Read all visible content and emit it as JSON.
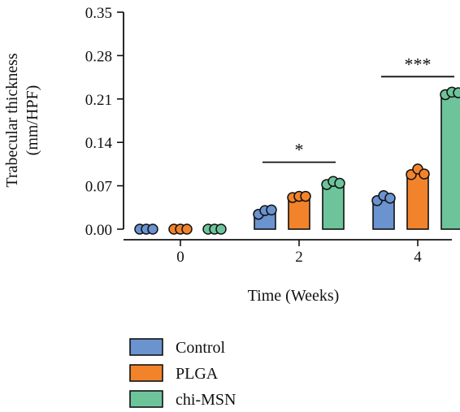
{
  "chart_data": {
    "type": "bar",
    "title": "",
    "xlabel": "Time (Weeks)",
    "ylabel_lines": [
      "Trabecular thickness",
      "(mm/HPF)"
    ],
    "categories": [
      "0",
      "2",
      "4"
    ],
    "ylim": [
      0,
      0.35
    ],
    "yticks": [
      "0.00",
      "0.07",
      "0.14",
      "0.21",
      "0.28",
      "0.35"
    ],
    "series": [
      {
        "name": "Control",
        "color": "#6a93cf",
        "values": [
          0.0,
          0.028,
          0.05
        ],
        "points": [
          [
            0.0,
            0.0,
            0.0
          ],
          [
            0.024,
            0.03,
            0.031
          ],
          [
            0.046,
            0.054,
            0.05
          ]
        ]
      },
      {
        "name": "PLGA",
        "color": "#f3832a",
        "values": [
          0.0,
          0.052,
          0.093
        ],
        "points": [
          [
            0.0,
            0.0,
            0.0
          ],
          [
            0.051,
            0.053,
            0.053
          ],
          [
            0.088,
            0.097,
            0.089
          ]
        ]
      },
      {
        "name": "chi-MSN",
        "color": "#6dc49b",
        "values": [
          0.0,
          0.074,
          0.219
        ],
        "points": [
          [
            0.0,
            0.0,
            0.0
          ],
          [
            0.072,
            0.077,
            0.074
          ],
          [
            0.217,
            0.221,
            0.22
          ]
        ]
      }
    ],
    "significance": [
      {
        "category": "2",
        "label": "*",
        "y": 0.108
      },
      {
        "category": "4",
        "label": "***",
        "y": 0.246
      }
    ],
    "legend_position": "bottom"
  }
}
